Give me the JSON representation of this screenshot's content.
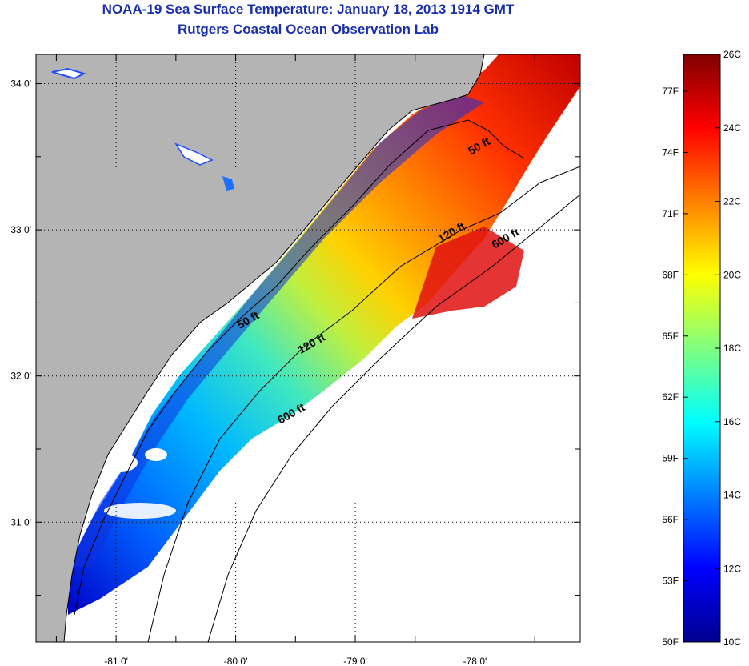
{
  "title_line1": "NOAA-19 Sea Surface Temperature:  January 18, 2013 1914 GMT",
  "title_line2": "Rutgers Coastal Ocean Observation Lab",
  "map": {
    "lat_ticks": [
      {
        "value": 34,
        "label": "34 0'"
      },
      {
        "value": 33,
        "label": "33 0'"
      },
      {
        "value": 32,
        "label": "32 0'"
      },
      {
        "value": 31,
        "label": "31 0'"
      }
    ],
    "lon_ticks": [
      {
        "value": -81,
        "label": "-81 0'"
      },
      {
        "value": -80,
        "label": "-80 0'"
      },
      {
        "value": -79,
        "label": "-79 0'"
      },
      {
        "value": -78,
        "label": "-78 0'"
      }
    ],
    "lon_range": [
      -81.67,
      -77.12
    ],
    "lat_range": [
      30.18,
      34.2
    ],
    "grid": true,
    "land_color": "#b4b4b4",
    "contour_labels": [
      {
        "text": "50 ft",
        "lon": -77.95,
        "lat": 33.55
      },
      {
        "text": "50 ft",
        "lon": -79.88,
        "lat": 32.36
      },
      {
        "text": "120 ft",
        "lon": -78.18,
        "lat": 32.96
      },
      {
        "text": "120 ft",
        "lon": -79.35,
        "lat": 32.2
      },
      {
        "text": "600 ft",
        "lon": -77.73,
        "lat": 32.92
      },
      {
        "text": "600 ft",
        "lon": -79.52,
        "lat": 31.72
      }
    ]
  },
  "colorbar": {
    "colors": [
      "#00008f",
      "#0000ff",
      "#0080ff",
      "#00ffff",
      "#80ff80",
      "#ffff00",
      "#ff8000",
      "#ff0000",
      "#800000"
    ],
    "celsius_labels": [
      "26C",
      "24C",
      "22C",
      "20C",
      "18C",
      "16C",
      "14C",
      "12C",
      "10C"
    ],
    "fahrenheit_labels": [
      "77F",
      "74F",
      "71F",
      "68F",
      "65F",
      "62F",
      "59F",
      "56F",
      "53F",
      "50F"
    ]
  }
}
